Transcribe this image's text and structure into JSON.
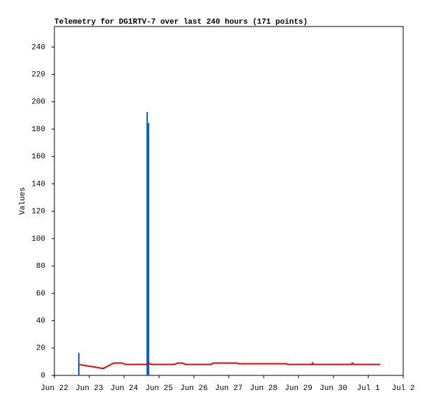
{
  "chart_data": {
    "type": "line",
    "title": "Telemetry for DG1RTV-7 over last 240 hours (171 points)",
    "y_label": "Values",
    "xlim": [
      0,
      10
    ],
    "xticks": [
      {
        "value": 0,
        "label": "Jun 22"
      },
      {
        "value": 1,
        "label": "Jun 23"
      },
      {
        "value": 2,
        "label": "Jun 24"
      },
      {
        "value": 3,
        "label": "Jun 25"
      },
      {
        "value": 4,
        "label": "Jun 26"
      },
      {
        "value": 5,
        "label": "Jun 27"
      },
      {
        "value": 6,
        "label": "Jun 28"
      },
      {
        "value": 7,
        "label": "Jun 29"
      },
      {
        "value": 8,
        "label": "Jun 30"
      },
      {
        "value": 9,
        "label": "Jul 1"
      },
      {
        "value": 10,
        "label": "Jul 2"
      }
    ],
    "ylim": [
      0,
      255
    ],
    "yticks": [
      0,
      20,
      40,
      60,
      80,
      100,
      120,
      140,
      160,
      180,
      200,
      220,
      240
    ],
    "grid": false,
    "series": [
      {
        "kind": "bar",
        "color": "#0066cc",
        "x": [
          0.7,
          2.66,
          2.7
        ],
        "values": [
          16.5,
          192.5,
          184.5
        ]
      },
      {
        "kind": "line",
        "color": "#ee0000",
        "x": [
          0.7,
          1.4,
          1.7,
          1.94,
          2.04,
          2.64,
          2.7,
          2.78,
          3.44,
          3.54,
          3.68,
          3.76,
          4.5,
          4.54,
          5.24,
          5.28,
          6.64,
          6.7,
          7.38,
          7.4,
          7.42,
          8.52,
          8.54,
          8.58,
          9.34
        ],
        "values": [
          8,
          5,
          9,
          9,
          8,
          8,
          9,
          8,
          8,
          9,
          9,
          8,
          8,
          9,
          9,
          8.5,
          8.5,
          8,
          8,
          9,
          8,
          8,
          9,
          8,
          8
        ]
      }
    ]
  }
}
